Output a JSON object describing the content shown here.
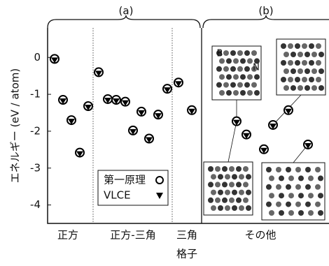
{
  "chart_data": {
    "type": "scatter",
    "panel_labels": [
      "(a)",
      "(b)"
    ],
    "xlabel": "格子",
    "ylabel": "エネルギー (eV / atom)",
    "groups": [
      "正方",
      "正方-三角",
      "三角",
      "その他"
    ],
    "categories": [
      null,
      null,
      null,
      null,
      null,
      null,
      null,
      null,
      null,
      null,
      null,
      null,
      null,
      null,
      null,
      null,
      null,
      null,
      null,
      null,
      null,
      null
    ],
    "series": [
      {
        "name": "第一原理",
        "color": "#000000",
        "marker": "open-circle",
        "values": [
          -0.04,
          -1.15,
          -1.7,
          -2.58,
          -1.32,
          -0.4,
          -1.13,
          -1.15,
          -1.2,
          -1.98,
          -1.47,
          -2.2,
          -1.55,
          -0.85,
          -0.68,
          -1.43,
          -1.73,
          -2.09,
          -2.49,
          -1.83,
          -1.43,
          -2.36
        ]
      },
      {
        "name": "VLCE",
        "color": "#000000",
        "marker": "filled-triangle",
        "values": [
          -0.04,
          -1.15,
          -1.7,
          -2.58,
          -1.32,
          -0.4,
          -1.13,
          -1.15,
          -1.2,
          -1.98,
          -1.47,
          -2.2,
          -1.55,
          -0.85,
          -0.68,
          -1.43,
          -1.73,
          -2.09,
          -2.49,
          -1.83,
          -1.43,
          -2.36
        ]
      }
    ],
    "ylim": [
      -4.5,
      0.8
    ],
    "yticks": [
      0,
      -1,
      -2,
      -3,
      -4
    ],
    "inset_labels": [
      "B",
      "N"
    ]
  }
}
